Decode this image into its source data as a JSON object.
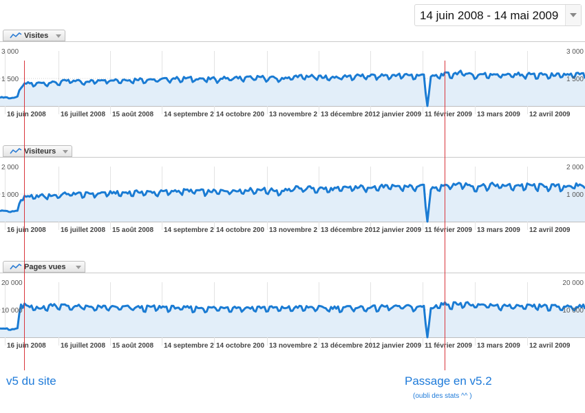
{
  "date_range": "14 juin 2008 - 14 mai 2009",
  "charts": [
    {
      "title": "Visites",
      "y_ticks": [
        "3 000",
        "1 500"
      ],
      "y_max": 3000
    },
    {
      "title": "Visiteurs",
      "y_ticks": [
        "2 000",
        "1 000"
      ],
      "y_max": 2000
    },
    {
      "title": "Pages vues",
      "y_ticks": [
        "20 000",
        "10 000"
      ],
      "y_max": 20000
    }
  ],
  "x_ticks": [
    "16 juin 2008",
    "16 juillet 2008",
    "15 août 2008",
    "14 septembre 2",
    "14 octobre 200",
    "13 novembre 2",
    "13 décembre 20",
    "12 janvier 2009",
    "11 février 2009",
    "13 mars 2009",
    "12 avril 2009"
  ],
  "annotations": {
    "v5": "v5 du site",
    "v52": "Passage en v5.2",
    "v52_sub": "(oubli des stats ^^ )"
  },
  "colors": {
    "line": "#1a7bd3",
    "fill": "#e2eef9",
    "event": "#d8343a"
  },
  "chart_data": [
    {
      "type": "area",
      "title": "Visites",
      "x_range": [
        "14 juin 2008",
        "14 mai 2009"
      ],
      "ylim": [
        0,
        3000
      ],
      "series": [
        {
          "name": "Visites",
          "x_days": [
            0,
            4,
            8,
            10,
            12,
            16,
            20,
            24,
            30,
            40,
            50,
            60,
            70,
            80,
            90,
            100,
            110,
            120,
            130,
            140,
            150,
            160,
            170,
            180,
            190,
            200,
            210,
            220,
            230,
            238,
            240,
            242,
            244,
            246,
            250,
            260,
            265,
            270,
            280,
            290,
            300,
            310,
            320,
            330,
            334
          ],
          "values": [
            450,
            460,
            440,
            480,
            1100,
            1200,
            1180,
            1250,
            1230,
            1350,
            1300,
            1400,
            1380,
            1420,
            1400,
            1460,
            1470,
            1430,
            1480,
            1500,
            1520,
            1450,
            1580,
            1560,
            1520,
            1590,
            1600,
            1610,
            1650,
            1620,
            1600,
            1650,
            0,
            1500,
            1650,
            1720,
            1800,
            1640,
            1700,
            1660,
            1680,
            1650,
            1640,
            1680,
            1660
          ]
        }
      ]
    },
    {
      "type": "area",
      "title": "Visiteurs",
      "x_range": [
        "14 juin 2008",
        "14 mai 2009"
      ],
      "ylim": [
        0,
        2000
      ],
      "series": [
        {
          "name": "Visiteurs",
          "x_days": [
            0,
            4,
            8,
            10,
            12,
            16,
            20,
            24,
            30,
            40,
            50,
            60,
            70,
            80,
            90,
            100,
            110,
            120,
            130,
            140,
            150,
            160,
            170,
            180,
            190,
            200,
            210,
            220,
            230,
            238,
            240,
            242,
            244,
            246,
            250,
            260,
            265,
            270,
            280,
            290,
            300,
            310,
            320,
            330,
            334
          ],
          "values": [
            380,
            380,
            360,
            400,
            840,
            900,
            880,
            920,
            920,
            1000,
            980,
            1020,
            1020,
            1050,
            1040,
            1090,
            1100,
            1060,
            1100,
            1120,
            1140,
            1080,
            1200,
            1180,
            1150,
            1210,
            1230,
            1240,
            1250,
            1240,
            1220,
            1260,
            0,
            1150,
            1270,
            1320,
            1350,
            1240,
            1300,
            1270,
            1280,
            1260,
            1250,
            1280,
            1270
          ]
        }
      ]
    },
    {
      "type": "area",
      "title": "Pages vues",
      "x_range": [
        "14 juin 2008",
        "14 mai 2009"
      ],
      "ylim": [
        0,
        20000
      ],
      "series": [
        {
          "name": "Pages vues",
          "x_days": [
            0,
            4,
            8,
            10,
            12,
            16,
            20,
            24,
            30,
            40,
            50,
            60,
            70,
            80,
            90,
            100,
            110,
            120,
            130,
            140,
            150,
            160,
            170,
            180,
            190,
            200,
            210,
            220,
            230,
            238,
            240,
            242,
            244,
            246,
            250,
            260,
            265,
            270,
            280,
            290,
            300,
            310,
            320,
            330,
            334
          ],
          "values": [
            3200,
            3000,
            2800,
            3200,
            12500,
            10500,
            10800,
            10300,
            11500,
            11000,
            10800,
            10600,
            10700,
            10500,
            10700,
            10500,
            10400,
            10300,
            10600,
            10400,
            10500,
            10300,
            10600,
            10500,
            10400,
            10600,
            10500,
            10800,
            10900,
            10700,
            10600,
            10800,
            0,
            10000,
            11600,
            11800,
            12200,
            11200,
            11400,
            11000,
            10900,
            11000,
            10800,
            11000,
            10900
          ]
        }
      ]
    }
  ]
}
